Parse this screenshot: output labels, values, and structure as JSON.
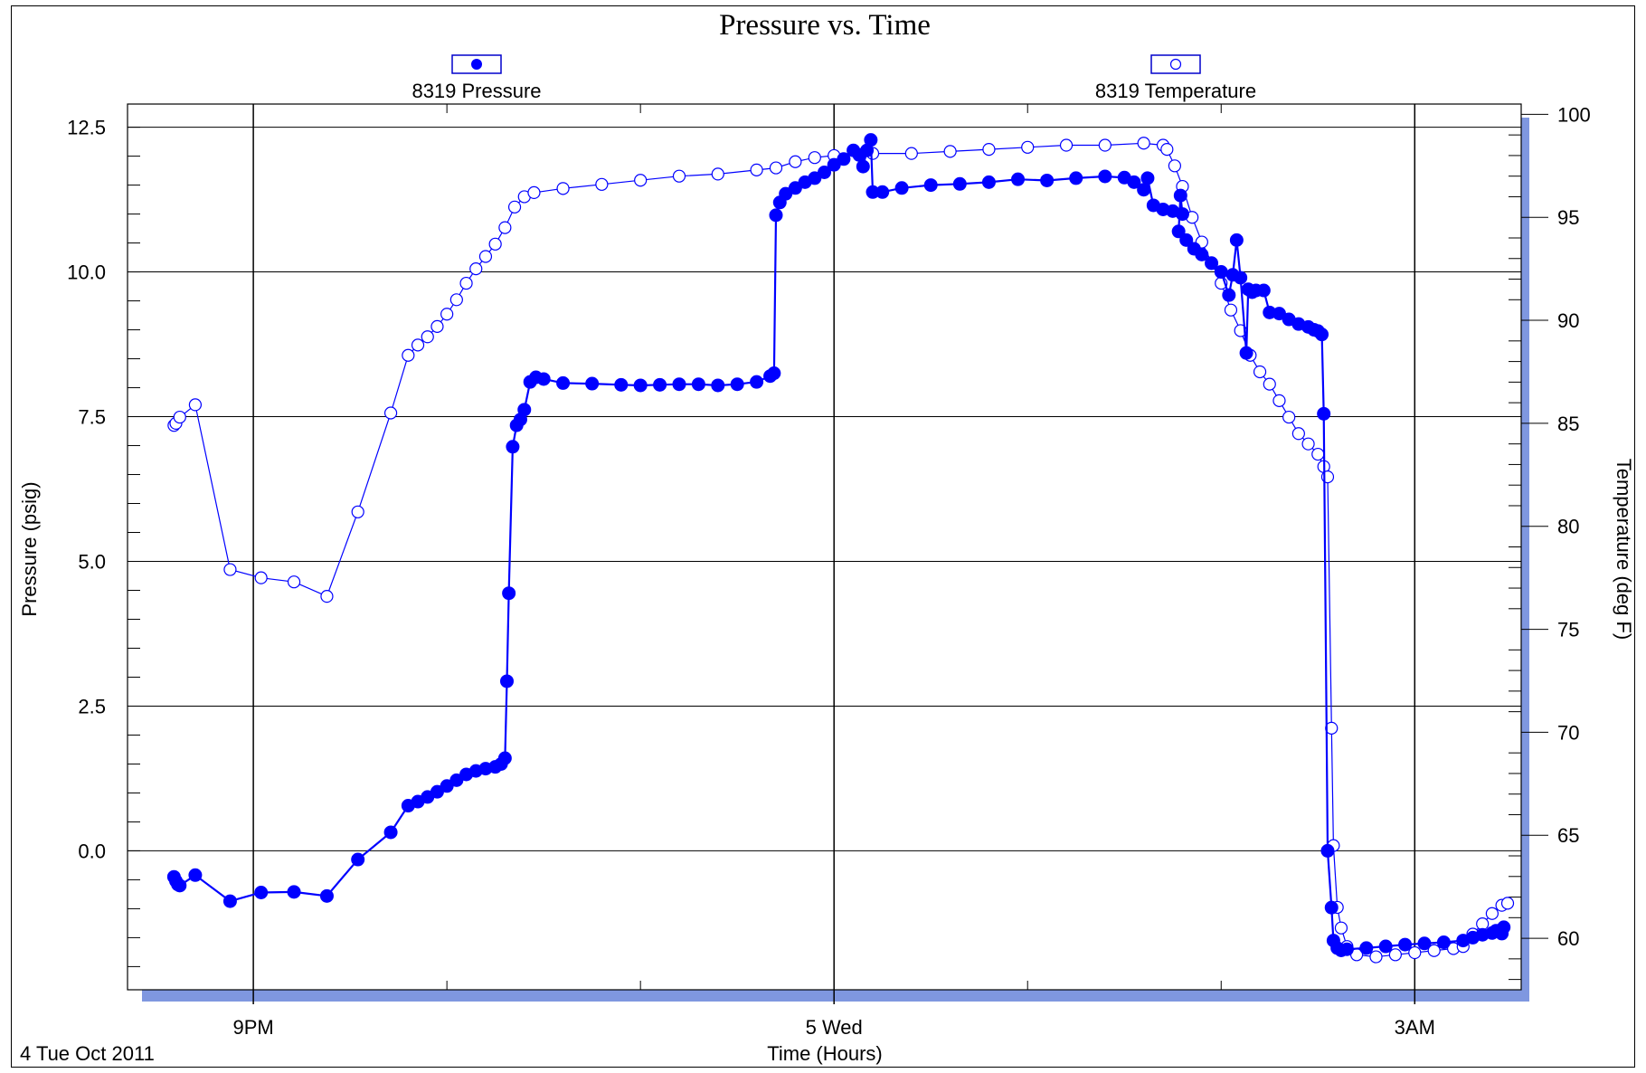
{
  "chart_data": {
    "type": "line",
    "title": "Pressure vs. Time",
    "xlabel": "Time (Hours)",
    "ylabel": "Pressure (psig)",
    "y2label": "Temperature (deg F)",
    "date_label": "4 Tue Oct 2011",
    "x_unit": "hours after 9PM",
    "xlim": [
      -0.65,
      6.55
    ],
    "ylim": [
      -2.4,
      12.9
    ],
    "y2lim": [
      57.5,
      100.5
    ],
    "x_major_ticks": [
      0,
      3,
      6
    ],
    "x_tick_labels": [
      "9PM",
      "5 Wed",
      "3AM"
    ],
    "x_minor_ticks": [
      1,
      2,
      4,
      5
    ],
    "y_ticks": [
      0,
      2.5,
      5,
      7.5,
      10,
      12.5
    ],
    "y_tick_labels": [
      "0.0",
      "2.5",
      "5.0",
      "7.5",
      "10.0",
      "12.5"
    ],
    "y2_ticks": [
      60,
      65,
      70,
      75,
      80,
      85,
      90,
      95,
      100
    ],
    "y2_tick_labels": [
      "60",
      "65",
      "70",
      "75",
      "80",
      "85",
      "90",
      "95",
      "100"
    ],
    "grid": true,
    "legend_position": "top",
    "series": [
      {
        "name": "8319 Pressure",
        "marker": "filled-circle",
        "color": "#0000ff",
        "points": [
          [
            -0.41,
            -0.45
          ],
          [
            -0.4,
            -0.52
          ],
          [
            -0.39,
            -0.58
          ],
          [
            -0.38,
            -0.6
          ],
          [
            -0.3,
            -0.42
          ],
          [
            -0.12,
            -0.87
          ],
          [
            0.04,
            -0.72
          ],
          [
            0.21,
            -0.71
          ],
          [
            0.38,
            -0.78
          ],
          [
            0.54,
            -0.15
          ],
          [
            0.71,
            0.32
          ],
          [
            0.8,
            0.78
          ],
          [
            0.85,
            0.85
          ],
          [
            0.9,
            0.93
          ],
          [
            0.95,
            1.02
          ],
          [
            1.0,
            1.12
          ],
          [
            1.05,
            1.22
          ],
          [
            1.1,
            1.32
          ],
          [
            1.15,
            1.38
          ],
          [
            1.2,
            1.42
          ],
          [
            1.25,
            1.45
          ],
          [
            1.28,
            1.5
          ],
          [
            1.3,
            1.6
          ],
          [
            1.31,
            2.93
          ],
          [
            1.32,
            4.45
          ],
          [
            1.34,
            6.98
          ],
          [
            1.36,
            7.35
          ],
          [
            1.38,
            7.45
          ],
          [
            1.4,
            7.62
          ],
          [
            1.43,
            8.1
          ],
          [
            1.46,
            8.18
          ],
          [
            1.5,
            8.15
          ],
          [
            1.6,
            8.08
          ],
          [
            1.75,
            8.07
          ],
          [
            1.9,
            8.05
          ],
          [
            2.0,
            8.04
          ],
          [
            2.1,
            8.05
          ],
          [
            2.2,
            8.06
          ],
          [
            2.3,
            8.06
          ],
          [
            2.4,
            8.04
          ],
          [
            2.5,
            8.06
          ],
          [
            2.6,
            8.1
          ],
          [
            2.67,
            8.2
          ],
          [
            2.69,
            8.25
          ],
          [
            2.7,
            10.98
          ],
          [
            2.72,
            11.2
          ],
          [
            2.75,
            11.35
          ],
          [
            2.8,
            11.45
          ],
          [
            2.85,
            11.55
          ],
          [
            2.9,
            11.62
          ],
          [
            2.95,
            11.72
          ],
          [
            3.0,
            11.85
          ],
          [
            3.05,
            11.95
          ],
          [
            3.1,
            12.1
          ],
          [
            3.13,
            12.02
          ],
          [
            3.15,
            11.82
          ],
          [
            3.17,
            12.1
          ],
          [
            3.19,
            12.28
          ],
          [
            3.2,
            11.38
          ],
          [
            3.25,
            11.38
          ],
          [
            3.35,
            11.45
          ],
          [
            3.5,
            11.5
          ],
          [
            3.65,
            11.52
          ],
          [
            3.8,
            11.55
          ],
          [
            3.95,
            11.6
          ],
          [
            4.1,
            11.58
          ],
          [
            4.25,
            11.62
          ],
          [
            4.4,
            11.65
          ],
          [
            4.5,
            11.63
          ],
          [
            4.55,
            11.55
          ],
          [
            4.6,
            11.42
          ],
          [
            4.62,
            11.62
          ],
          [
            4.65,
            11.15
          ],
          [
            4.7,
            11.08
          ],
          [
            4.75,
            11.05
          ],
          [
            4.8,
            11.0
          ],
          [
            4.79,
            11.32
          ],
          [
            4.78,
            10.7
          ],
          [
            4.82,
            10.55
          ],
          [
            4.86,
            10.4
          ],
          [
            4.9,
            10.3
          ],
          [
            4.95,
            10.15
          ],
          [
            5.0,
            10.0
          ],
          [
            5.04,
            9.6
          ],
          [
            5.06,
            9.95
          ],
          [
            5.08,
            10.55
          ],
          [
            5.1,
            9.9
          ],
          [
            5.13,
            8.6
          ],
          [
            5.14,
            9.7
          ],
          [
            5.16,
            9.65
          ],
          [
            5.18,
            9.68
          ],
          [
            5.22,
            9.68
          ],
          [
            5.25,
            9.3
          ],
          [
            5.3,
            9.28
          ],
          [
            5.35,
            9.18
          ],
          [
            5.4,
            9.1
          ],
          [
            5.45,
            9.05
          ],
          [
            5.48,
            9.0
          ],
          [
            5.5,
            8.98
          ],
          [
            5.52,
            8.92
          ],
          [
            5.53,
            7.55
          ],
          [
            5.55,
            0.0
          ],
          [
            5.57,
            -0.98
          ],
          [
            5.58,
            -1.55
          ],
          [
            5.6,
            -1.68
          ],
          [
            5.62,
            -1.72
          ],
          [
            5.65,
            -1.7
          ],
          [
            5.75,
            -1.68
          ],
          [
            5.85,
            -1.65
          ],
          [
            5.95,
            -1.62
          ],
          [
            6.05,
            -1.6
          ],
          [
            6.15,
            -1.58
          ],
          [
            6.25,
            -1.55
          ],
          [
            6.3,
            -1.5
          ],
          [
            6.35,
            -1.45
          ],
          [
            6.4,
            -1.42
          ],
          [
            6.42,
            -1.38
          ],
          [
            6.45,
            -1.43
          ],
          [
            6.46,
            -1.32
          ]
        ]
      },
      {
        "name": "8319 Temperature",
        "marker": "open-circle",
        "color": "#0000ff",
        "axis": "right",
        "points": [
          [
            -0.41,
            84.9
          ],
          [
            -0.4,
            85.0
          ],
          [
            -0.38,
            85.3
          ],
          [
            -0.3,
            85.9
          ],
          [
            -0.12,
            77.9
          ],
          [
            0.04,
            77.5
          ],
          [
            0.21,
            77.3
          ],
          [
            0.38,
            76.6
          ],
          [
            0.54,
            80.7
          ],
          [
            0.71,
            85.5
          ],
          [
            0.8,
            88.3
          ],
          [
            0.85,
            88.8
          ],
          [
            0.9,
            89.2
          ],
          [
            0.95,
            89.7
          ],
          [
            1.0,
            90.3
          ],
          [
            1.05,
            91.0
          ],
          [
            1.1,
            91.8
          ],
          [
            1.15,
            92.5
          ],
          [
            1.2,
            93.1
          ],
          [
            1.25,
            93.7
          ],
          [
            1.3,
            94.5
          ],
          [
            1.35,
            95.5
          ],
          [
            1.4,
            96.0
          ],
          [
            1.45,
            96.2
          ],
          [
            1.6,
            96.4
          ],
          [
            1.8,
            96.6
          ],
          [
            2.0,
            96.8
          ],
          [
            2.2,
            97.0
          ],
          [
            2.4,
            97.1
          ],
          [
            2.6,
            97.3
          ],
          [
            2.7,
            97.4
          ],
          [
            2.8,
            97.7
          ],
          [
            2.9,
            97.9
          ],
          [
            3.0,
            98.0
          ],
          [
            3.2,
            98.1
          ],
          [
            3.4,
            98.1
          ],
          [
            3.6,
            98.2
          ],
          [
            3.8,
            98.3
          ],
          [
            4.0,
            98.4
          ],
          [
            4.2,
            98.5
          ],
          [
            4.4,
            98.5
          ],
          [
            4.6,
            98.6
          ],
          [
            4.7,
            98.5
          ],
          [
            4.72,
            98.3
          ],
          [
            4.76,
            97.5
          ],
          [
            4.8,
            96.5
          ],
          [
            4.85,
            95.0
          ],
          [
            4.9,
            93.8
          ],
          [
            4.95,
            92.8
          ],
          [
            5.0,
            91.8
          ],
          [
            5.05,
            90.5
          ],
          [
            5.1,
            89.5
          ],
          [
            5.15,
            88.3
          ],
          [
            5.2,
            87.5
          ],
          [
            5.25,
            86.9
          ],
          [
            5.3,
            86.1
          ],
          [
            5.35,
            85.3
          ],
          [
            5.4,
            84.5
          ],
          [
            5.45,
            84.0
          ],
          [
            5.5,
            83.5
          ],
          [
            5.53,
            82.9
          ],
          [
            5.55,
            82.4
          ],
          [
            5.57,
            70.2
          ],
          [
            5.58,
            64.5
          ],
          [
            5.6,
            61.5
          ],
          [
            5.62,
            60.5
          ],
          [
            5.65,
            59.6
          ],
          [
            5.7,
            59.2
          ],
          [
            5.8,
            59.1
          ],
          [
            5.9,
            59.2
          ],
          [
            6.0,
            59.3
          ],
          [
            6.1,
            59.4
          ],
          [
            6.2,
            59.5
          ],
          [
            6.25,
            59.6
          ],
          [
            6.3,
            60.2
          ],
          [
            6.35,
            60.7
          ],
          [
            6.4,
            61.2
          ],
          [
            6.45,
            61.6
          ],
          [
            6.48,
            61.7
          ]
        ]
      }
    ]
  }
}
